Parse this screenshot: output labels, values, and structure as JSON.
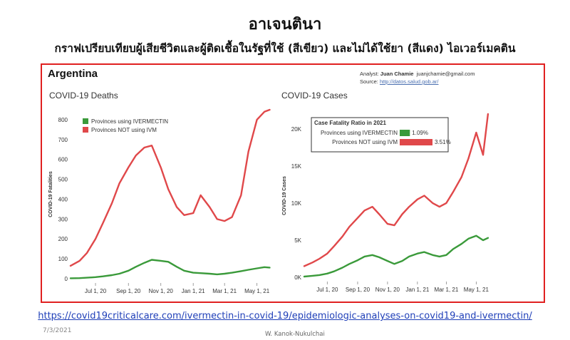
{
  "slide": {
    "title": "อาเจนตินา",
    "subtitle": "กราฟเปรียบเทียบผู้เสียชีวิตและผู้ติดเชื้อในรัฐที่ใช้ (สีเขียว) และไม่ได้ใช้ยา (สีแดง) ไอเวอร์เมคติน",
    "url": "https://covid19criticalcare.com/ivermectin-in-covid-19/epidemiologic-analyses-on-covid19-and-ivermectin/",
    "date": "7/3/2021",
    "author": "W. Kanok-Nukulchai"
  },
  "figure": {
    "country": "Argentina",
    "analyst_label": "Analyst:",
    "analyst_name": "Juan Chamie",
    "analyst_email": "juanjchamie@gmail.com",
    "source_label": "Source:",
    "source_url": "http://datos.salud.gob.ar/"
  },
  "colors": {
    "green": "#3a9a3a",
    "red": "#e0484a",
    "frame": "#e02020",
    "link": "#1f3fb8"
  },
  "chart_data": [
    {
      "type": "line",
      "title": "COVID-19 Deaths",
      "ylabel": "COVID-19 Fatalities",
      "ylim": [
        0,
        850
      ],
      "yticks": [
        "0",
        "100",
        "200",
        "300",
        "400",
        "500",
        "600",
        "700",
        "800"
      ],
      "xticks": [
        "Jul 1, 20",
        "Sep 1, 20",
        "Nov 1, 20",
        "Jan 1, 21",
        "Mar 1, 21",
        "May 1, 21"
      ],
      "legend_placement": "top-left",
      "series": [
        {
          "name": "Provinces using IVERMECTIN",
          "color": "green",
          "x": [
            "2020-05-15",
            "2020-06-01",
            "2020-06-15",
            "2020-07-01",
            "2020-07-15",
            "2020-08-01",
            "2020-08-15",
            "2020-09-01",
            "2020-09-15",
            "2020-10-01",
            "2020-10-15",
            "2020-11-01",
            "2020-11-15",
            "2020-12-01",
            "2020-12-15",
            "2021-01-01",
            "2021-01-15",
            "2021-02-01",
            "2021-02-15",
            "2021-03-01",
            "2021-03-15",
            "2021-04-01",
            "2021-04-15",
            "2021-05-01",
            "2021-05-15",
            "2021-05-25"
          ],
          "y": [
            2,
            3,
            5,
            8,
            12,
            18,
            25,
            40,
            60,
            80,
            95,
            90,
            85,
            60,
            40,
            30,
            28,
            25,
            22,
            25,
            30,
            38,
            45,
            52,
            58,
            56
          ]
        },
        {
          "name": "Provinces NOT using IVM",
          "color": "red",
          "x": [
            "2020-05-15",
            "2020-06-01",
            "2020-06-15",
            "2020-07-01",
            "2020-07-15",
            "2020-08-01",
            "2020-08-15",
            "2020-09-01",
            "2020-09-15",
            "2020-10-01",
            "2020-10-15",
            "2020-11-01",
            "2020-11-15",
            "2020-12-01",
            "2020-12-15",
            "2021-01-01",
            "2021-01-15",
            "2021-02-01",
            "2021-02-15",
            "2021-03-01",
            "2021-03-15",
            "2021-04-01",
            "2021-04-15",
            "2021-05-01",
            "2021-05-15",
            "2021-05-25"
          ],
          "y": [
            65,
            90,
            130,
            200,
            280,
            380,
            480,
            560,
            620,
            660,
            670,
            560,
            450,
            360,
            320,
            330,
            420,
            360,
            300,
            290,
            310,
            420,
            640,
            800,
            840,
            850
          ]
        }
      ]
    },
    {
      "type": "line",
      "title": "COVID-19 Cases",
      "ylabel": "COVID-19 Cases",
      "ylim": [
        0,
        22000
      ],
      "yticks": [
        "0K",
        "5K",
        "10K",
        "15K",
        "20K"
      ],
      "xticks": [
        "Jul 1, 20",
        "Sep 1, 20",
        "Nov 1, 20",
        "Jan 1, 21",
        "Mar 1, 21",
        "May 1, 21"
      ],
      "series": [
        {
          "name": "Provinces using IVERMECTIN",
          "color": "green",
          "x": [
            "2020-05-15",
            "2020-06-01",
            "2020-06-15",
            "2020-07-01",
            "2020-07-15",
            "2020-08-01",
            "2020-08-15",
            "2020-09-01",
            "2020-09-15",
            "2020-10-01",
            "2020-10-15",
            "2020-11-01",
            "2020-11-15",
            "2020-12-01",
            "2020-12-15",
            "2021-01-01",
            "2021-01-15",
            "2021-02-01",
            "2021-02-15",
            "2021-03-01",
            "2021-03-15",
            "2021-04-01",
            "2021-04-15",
            "2021-05-01",
            "2021-05-15",
            "2021-05-25"
          ],
          "y": [
            100,
            200,
            300,
            500,
            800,
            1300,
            1800,
            2300,
            2800,
            3000,
            2700,
            2200,
            1800,
            2200,
            2800,
            3200,
            3400,
            3000,
            2800,
            3000,
            3800,
            4500,
            5200,
            5600,
            5000,
            5300
          ]
        },
        {
          "name": "Provinces NOT using IVM",
          "color": "red",
          "x": [
            "2020-05-15",
            "2020-06-01",
            "2020-06-15",
            "2020-07-01",
            "2020-07-15",
            "2020-08-01",
            "2020-08-15",
            "2020-09-01",
            "2020-09-15",
            "2020-10-01",
            "2020-10-15",
            "2020-11-01",
            "2020-11-15",
            "2020-12-01",
            "2020-12-15",
            "2021-01-01",
            "2021-01-15",
            "2021-02-01",
            "2021-02-15",
            "2021-03-01",
            "2021-03-15",
            "2021-04-01",
            "2021-04-15",
            "2021-05-01",
            "2021-05-15",
            "2021-05-25"
          ],
          "y": [
            1500,
            2000,
            2500,
            3200,
            4200,
            5500,
            6800,
            8000,
            9000,
            9500,
            8500,
            7200,
            7000,
            8500,
            9500,
            10500,
            11000,
            10000,
            9500,
            10000,
            11500,
            13500,
            16000,
            19500,
            16500,
            22000
          ]
        }
      ],
      "inset": {
        "title": "Case Fatality Ratio in 2021",
        "rows": [
          {
            "label": "Provinces using IVERMECTIN",
            "value": 1.09,
            "text": "1.09%",
            "color": "green"
          },
          {
            "label": "Provinces NOT using IVM",
            "value": 3.51,
            "text": "3.51%",
            "color": "red"
          }
        ]
      }
    }
  ]
}
